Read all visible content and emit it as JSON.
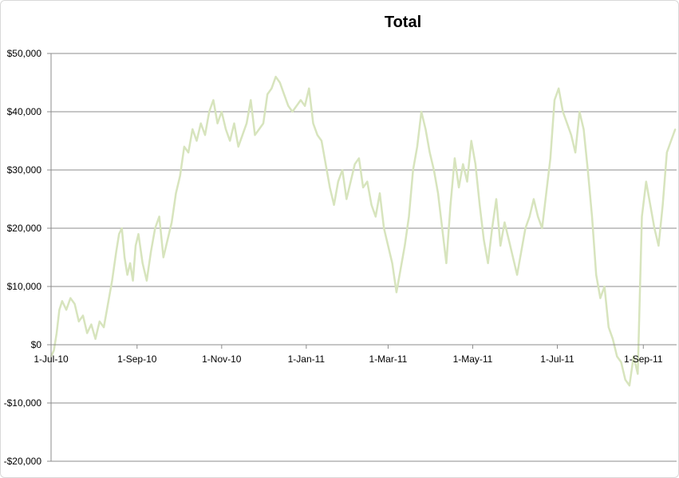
{
  "chart_data": {
    "type": "line",
    "title": "Total",
    "xlabel": "",
    "ylabel": "",
    "y_tick_labels": [
      "$50,000",
      "$40,000",
      "$30,000",
      "$20,000",
      "$10,000",
      "$0",
      "-$10,000",
      "-$20,000"
    ],
    "y_ticks": [
      50000,
      40000,
      30000,
      20000,
      10000,
      0,
      -10000,
      -20000
    ],
    "ylim": [
      -20000,
      50000
    ],
    "x_tick_labels": [
      "1-Jul-10",
      "1-Sep-10",
      "1-Nov-10",
      "1-Jan-11",
      "1-Mar-11",
      "1-May-11",
      "1-Jul-11",
      "1-Sep-11"
    ],
    "x_ticks": [
      "2010-07-01",
      "2010-09-01",
      "2010-11-01",
      "2011-01-01",
      "2011-03-01",
      "2011-05-01",
      "2011-07-01",
      "2011-09-01"
    ],
    "xlim": [
      "2010-07-01",
      "2011-09-25"
    ],
    "grid": "horizontal",
    "legend": "none",
    "colors": {
      "line": "#d7e4bd",
      "grid": "#8c8c8c",
      "axis": "#8c8c8c"
    },
    "series": [
      {
        "x": [
          "2010-07-01",
          "2010-07-03",
          "2010-07-05",
          "2010-07-07",
          "2010-07-09",
          "2010-07-12",
          "2010-07-15",
          "2010-07-18",
          "2010-07-21",
          "2010-07-24",
          "2010-07-27",
          "2010-07-30",
          "2010-08-02",
          "2010-08-05",
          "2010-08-08",
          "2010-08-11",
          "2010-08-14",
          "2010-08-17",
          "2010-08-19",
          "2010-08-21",
          "2010-08-23",
          "2010-08-25",
          "2010-08-27",
          "2010-08-29",
          "2010-08-31",
          "2010-09-02",
          "2010-09-05",
          "2010-09-08",
          "2010-09-11",
          "2010-09-14",
          "2010-09-17",
          "2010-09-20",
          "2010-09-23",
          "2010-09-26",
          "2010-09-29",
          "2010-10-02",
          "2010-10-05",
          "2010-10-08",
          "2010-10-11",
          "2010-10-14",
          "2010-10-17",
          "2010-10-20",
          "2010-10-23",
          "2010-10-26",
          "2010-10-29",
          "2010-11-01",
          "2010-11-04",
          "2010-11-07",
          "2010-11-10",
          "2010-11-13",
          "2010-11-16",
          "2010-11-19",
          "2010-11-22",
          "2010-11-25",
          "2010-11-28",
          "2010-12-01",
          "2010-12-04",
          "2010-12-07",
          "2010-12-10",
          "2010-12-13",
          "2010-12-16",
          "2010-12-19",
          "2010-12-22",
          "2010-12-25",
          "2010-12-28",
          "2010-12-31",
          "2011-01-03",
          "2011-01-06",
          "2011-01-09",
          "2011-01-12",
          "2011-01-15",
          "2011-01-18",
          "2011-01-21",
          "2011-01-24",
          "2011-01-27",
          "2011-01-30",
          "2011-02-02",
          "2011-02-05",
          "2011-02-08",
          "2011-02-11",
          "2011-02-14",
          "2011-02-17",
          "2011-02-20",
          "2011-02-23",
          "2011-02-26",
          "2011-03-01",
          "2011-03-04",
          "2011-03-07",
          "2011-03-10",
          "2011-03-13",
          "2011-03-16",
          "2011-03-19",
          "2011-03-22",
          "2011-03-25",
          "2011-03-28",
          "2011-03-31",
          "2011-04-03",
          "2011-04-06",
          "2011-04-09",
          "2011-04-12",
          "2011-04-15",
          "2011-04-18",
          "2011-04-21",
          "2011-04-24",
          "2011-04-27",
          "2011-04-30",
          "2011-05-03",
          "2011-05-06",
          "2011-05-09",
          "2011-05-12",
          "2011-05-15",
          "2011-05-18",
          "2011-05-21",
          "2011-05-24",
          "2011-05-27",
          "2011-05-30",
          "2011-06-02",
          "2011-06-05",
          "2011-06-08",
          "2011-06-11",
          "2011-06-14",
          "2011-06-17",
          "2011-06-20",
          "2011-06-23",
          "2011-06-26",
          "2011-06-29",
          "2011-07-02",
          "2011-07-05",
          "2011-07-08",
          "2011-07-11",
          "2011-07-14",
          "2011-07-17",
          "2011-07-20",
          "2011-07-23",
          "2011-07-26",
          "2011-07-29",
          "2011-08-01",
          "2011-08-04",
          "2011-08-07",
          "2011-08-10",
          "2011-08-13",
          "2011-08-16",
          "2011-08-19",
          "2011-08-22",
          "2011-08-25",
          "2011-08-28",
          "2011-08-31",
          "2011-09-03",
          "2011-09-06",
          "2011-09-09",
          "2011-09-12",
          "2011-09-15",
          "2011-09-18",
          "2011-09-21",
          "2011-09-24"
        ],
        "values": [
          -2000,
          -1000,
          2000,
          6000,
          7500,
          6000,
          8000,
          7000,
          4000,
          5000,
          2000,
          3500,
          1000,
          4000,
          3000,
          7000,
          11000,
          16000,
          19000,
          20000,
          15000,
          12000,
          14000,
          11000,
          17000,
          19000,
          14000,
          11000,
          16000,
          20000,
          22000,
          15000,
          18000,
          21000,
          26000,
          29000,
          34000,
          33000,
          37000,
          35000,
          38000,
          36000,
          40000,
          42000,
          38000,
          40000,
          37000,
          35000,
          38000,
          34000,
          36000,
          38000,
          42000,
          36000,
          37000,
          38000,
          43000,
          44000,
          46000,
          45000,
          43000,
          41000,
          40000,
          41000,
          42000,
          41000,
          44000,
          38000,
          36000,
          35000,
          31000,
          27000,
          24000,
          28000,
          30000,
          25000,
          28000,
          31000,
          32000,
          27000,
          28000,
          24000,
          22000,
          26000,
          20000,
          17000,
          14000,
          9000,
          13000,
          17000,
          22000,
          30000,
          34000,
          40000,
          37000,
          33000,
          30000,
          26000,
          20000,
          14000,
          24000,
          32000,
          27000,
          31000,
          28000,
          35000,
          31000,
          24000,
          18000,
          14000,
          20000,
          25000,
          17000,
          21000,
          18000,
          15000,
          12000,
          16000,
          20000,
          22000,
          25000,
          22000,
          20000,
          26000,
          32000,
          42000,
          44000,
          40000,
          38000,
          36000,
          33000,
          40000,
          37000,
          30000,
          22000,
          12000,
          8000,
          10000,
          3000,
          1000,
          -2000,
          -3000,
          -6000,
          -7000,
          -2000,
          -5000,
          22000,
          28000,
          24000,
          20000,
          17000,
          24000,
          33000,
          35000,
          37000
        ]
      }
    ]
  }
}
